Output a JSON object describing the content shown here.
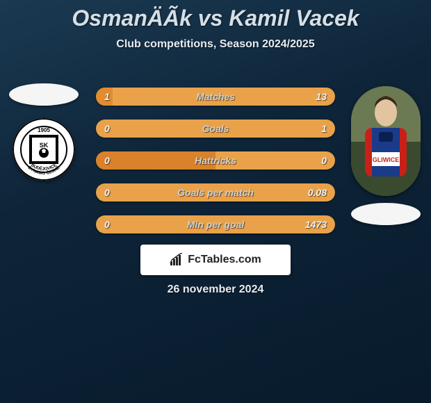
{
  "title": "OsmanÄÃ­k vs Kamil Vacek",
  "subtitle": "Club competitions, Season 2024/2025",
  "date": "26 november 2024",
  "footer": {
    "brand": "FcTables.com"
  },
  "left": {
    "flag_color": "#f2f2f2",
    "badge": {
      "year": "1905",
      "top_text": "SK",
      "mid_text": "DYNAMO ČESKÉ",
      "bot_text": "BUDĚJOVICE"
    }
  },
  "right": {
    "flag_color": "#f2f2f2"
  },
  "stats": {
    "rows": [
      {
        "label": "Matches",
        "left": "1",
        "right": "13",
        "left_pct": 7,
        "left_color": "#e28b2f",
        "right_color": "#e9a24a"
      },
      {
        "label": "Goals",
        "left": "0",
        "right": "1",
        "left_pct": 0,
        "left_color": "#e28b2f",
        "right_color": "#e9a24a"
      },
      {
        "label": "Hattricks",
        "left": "0",
        "right": "0",
        "left_pct": 50,
        "left_color": "#d9822b",
        "right_color": "#e9a24a"
      },
      {
        "label": "Goals per match",
        "left": "0",
        "right": "0.08",
        "left_pct": 0,
        "left_color": "#e28b2f",
        "right_color": "#e9a24a"
      },
      {
        "label": "Min per goal",
        "left": "0",
        "right": "1473",
        "left_pct": 0,
        "left_color": "#e28b2f",
        "right_color": "#e9a24a"
      }
    ]
  }
}
